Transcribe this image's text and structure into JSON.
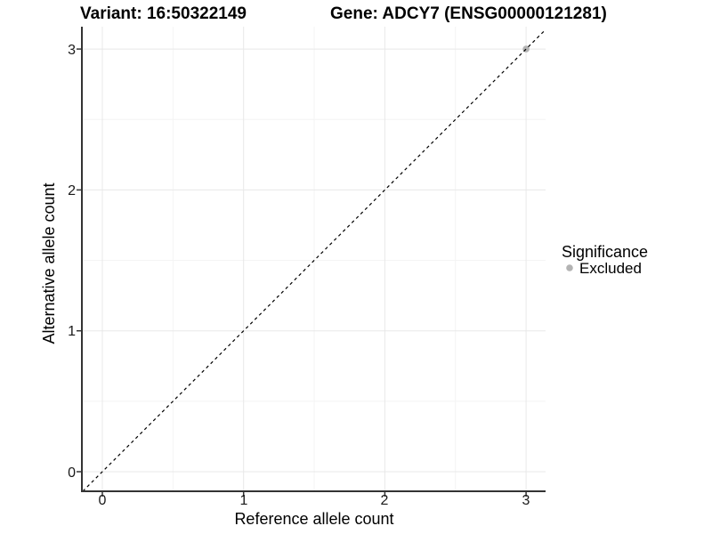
{
  "header": {
    "title_left": "Variant: 16:50322149",
    "title_right": "Gene: ADCY7 (ENSG00000121281)"
  },
  "axes": {
    "x": {
      "label": "Reference allele count",
      "ticks": [
        "0",
        "1",
        "2",
        "3"
      ]
    },
    "y": {
      "label": "Alternative allele count",
      "ticks": [
        "3",
        "2",
        "1",
        "0"
      ]
    }
  },
  "legend": {
    "title": "Significance",
    "items": [
      {
        "label": "Excluded",
        "color": "#b3b3b3"
      }
    ]
  },
  "chart_data": {
    "type": "scatter",
    "title_left": "Variant: 16:50322149",
    "title_right": "Gene: ADCY7 (ENSG00000121281)",
    "xlabel": "Reference allele count",
    "ylabel": "Alternative allele count",
    "xlim": [
      -0.15,
      3.15
    ],
    "ylim": [
      -0.15,
      3.15
    ],
    "x_ticks": [
      0,
      1,
      2,
      3
    ],
    "y_ticks": [
      0,
      1,
      2,
      3
    ],
    "x_minor_ticks": [
      0.5,
      1.5,
      2.5
    ],
    "y_minor_ticks": [
      0.5,
      1.5,
      2.5
    ],
    "grid": true,
    "legend_position": "right",
    "legend_title": "Significance",
    "series": [
      {
        "name": "Excluded",
        "color": "#b3b3b3",
        "points": [
          {
            "x": 3,
            "y": 3
          }
        ]
      }
    ],
    "reference_line": {
      "slope": 1,
      "intercept": 0,
      "style": "dashed",
      "color": "#000000"
    }
  },
  "colors": {
    "background": "#ffffff",
    "grid_major": "#e8e8e8",
    "grid_minor": "#f4f4f4",
    "axis_line": "#333333",
    "point_excluded": "#b3b3b3"
  }
}
